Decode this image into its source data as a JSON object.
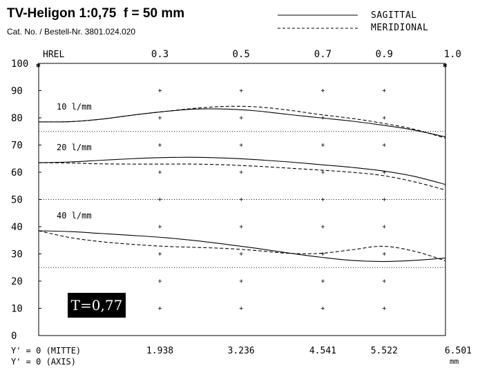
{
  "header": {
    "title": "TV-Heligon 1:0,75  f = 50 mm",
    "subtitle": "Cat. No. / Bestell-Nr. 3801.024.020"
  },
  "legend": {
    "sagittal": "SAGITTAL",
    "meridional": "MERIDIONAL",
    "sagittal_style": "solid",
    "meridional_style": "dashed"
  },
  "badge": {
    "text": "T=0,77"
  },
  "axis_footer": {
    "line1": "Y' = 0 (MITTE)",
    "line2": "Y' = 0 (AXIS)",
    "unit": "mm"
  },
  "chart_data": {
    "type": "line",
    "top_axis_label": "HREL",
    "top_ticks": [
      {
        "x": 1.938,
        "label": "0.3"
      },
      {
        "x": 3.236,
        "label": "0.5"
      },
      {
        "x": 4.541,
        "label": "0.7"
      },
      {
        "x": 5.522,
        "label": "0.9"
      },
      {
        "x": 6.501,
        "label": "1.0"
      }
    ],
    "bottom_ticks": [
      {
        "x": 1.938,
        "label": "1.938"
      },
      {
        "x": 3.236,
        "label": "3.236"
      },
      {
        "x": 4.541,
        "label": "4.541"
      },
      {
        "x": 5.522,
        "label": "5.522"
      },
      {
        "x": 6.501,
        "label": "6.501"
      }
    ],
    "y_ticks": [
      0,
      10,
      20,
      30,
      40,
      50,
      60,
      70,
      80,
      90,
      100
    ],
    "xlim": [
      0,
      6.501
    ],
    "ylim": [
      0,
      100
    ],
    "reference_levels": [
      75,
      50,
      25
    ],
    "series": [
      {
        "label": "10 l/mm",
        "type": "sagittal",
        "x": [
          0,
          0.5,
          1.0,
          1.5,
          2.0,
          2.5,
          3.0,
          3.5,
          4.0,
          4.5,
          5.0,
          5.5,
          6.0,
          6.501
        ],
        "y": [
          78.5,
          78.6,
          79.5,
          81.0,
          82.3,
          83.2,
          83.2,
          82.5,
          81.2,
          80.0,
          78.8,
          77.3,
          75.5,
          73.0
        ]
      },
      {
        "label": "",
        "type": "meridional",
        "x": [
          0,
          0.5,
          1.0,
          1.5,
          2.0,
          2.5,
          3.0,
          3.5,
          4.0,
          4.5,
          5.0,
          5.5,
          6.0,
          6.501
        ],
        "y": [
          78.5,
          78.6,
          79.5,
          81.0,
          82.3,
          83.5,
          84.2,
          84.0,
          82.8,
          81.2,
          79.8,
          78.0,
          75.8,
          72.5
        ]
      },
      {
        "label": "20 l/mm",
        "type": "sagittal",
        "x": [
          0,
          0.5,
          1.0,
          1.5,
          2.0,
          2.5,
          3.0,
          3.5,
          4.0,
          4.5,
          5.0,
          5.5,
          6.0,
          6.501
        ],
        "y": [
          63.5,
          63.8,
          64.4,
          65.0,
          65.4,
          65.5,
          65.2,
          64.6,
          63.8,
          62.8,
          61.8,
          60.5,
          58.5,
          55.5
        ]
      },
      {
        "label": "",
        "type": "meridional",
        "x": [
          0,
          0.5,
          1.0,
          1.5,
          2.0,
          2.5,
          3.0,
          3.5,
          4.0,
          4.5,
          5.0,
          5.5,
          6.0,
          6.501
        ],
        "y": [
          63.5,
          63.4,
          63.1,
          63.0,
          63.0,
          63.0,
          62.7,
          62.2,
          61.5,
          60.8,
          60.0,
          58.8,
          56.5,
          53.5
        ]
      },
      {
        "label": "40 l/mm",
        "type": "sagittal",
        "x": [
          0,
          0.5,
          1.0,
          1.5,
          2.0,
          2.5,
          3.0,
          3.5,
          4.0,
          4.5,
          5.0,
          5.5,
          6.0,
          6.501
        ],
        "y": [
          38.5,
          38.2,
          37.5,
          36.8,
          36.0,
          34.9,
          33.5,
          32.0,
          30.3,
          28.8,
          27.6,
          27.2,
          27.6,
          28.5
        ]
      },
      {
        "label": "",
        "type": "meridional",
        "x": [
          0,
          0.5,
          1.0,
          1.5,
          2.0,
          2.5,
          3.0,
          3.5,
          4.0,
          4.5,
          5.0,
          5.5,
          6.0,
          6.501
        ],
        "y": [
          38.5,
          36.0,
          34.5,
          33.5,
          32.8,
          32.4,
          32.0,
          31.2,
          30.2,
          30.2,
          31.5,
          32.8,
          31.0,
          27.5
        ]
      }
    ]
  }
}
